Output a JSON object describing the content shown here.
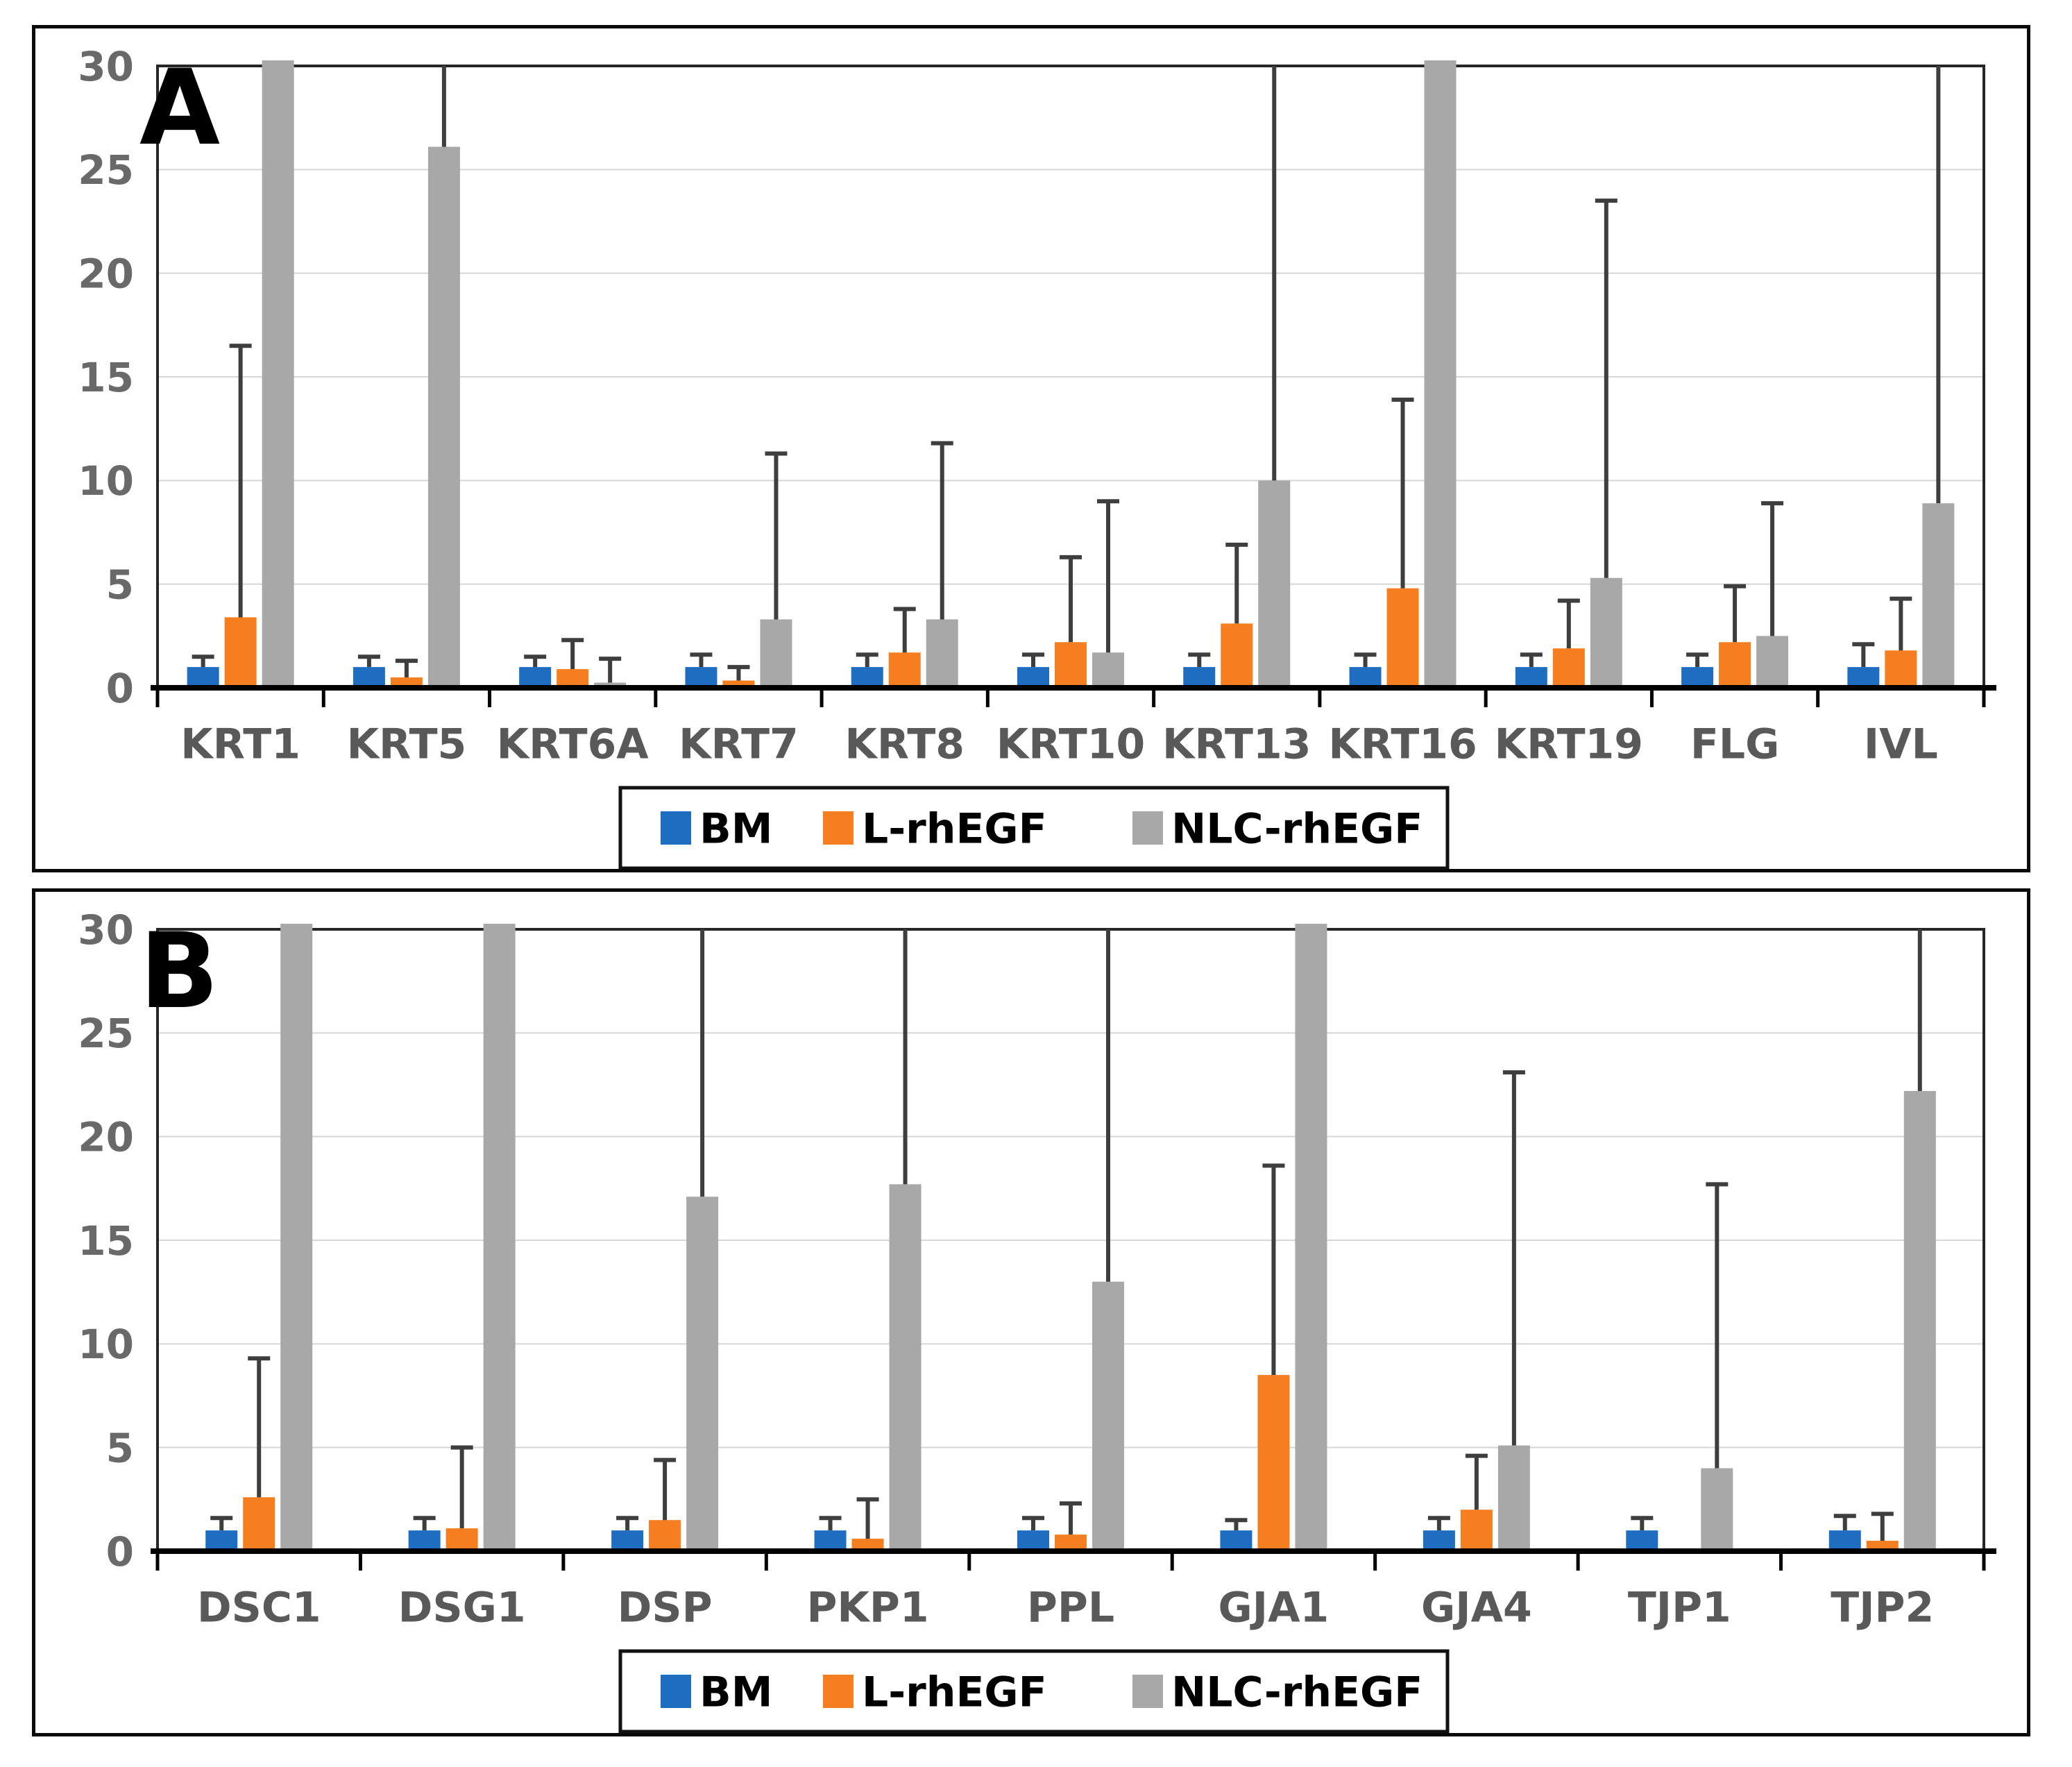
{
  "figure": {
    "background": "#ffffff",
    "panel_count": 2
  },
  "colors": {
    "bm": "#1F6DC1",
    "l_rhegf": "#F57E20",
    "nlc_rhegf": "#A8A8A8",
    "error_bar": "#3E3E3E",
    "grid_line": "#D6D6D6",
    "plot_border": "#262626",
    "axis_line": "#000000",
    "tick_label": "#696969",
    "category_label": "#595959",
    "legend_text": "#000000",
    "legend_border": "#111111",
    "panel_border": "#0a0a0a"
  },
  "legend": {
    "items": [
      {
        "label": "BM",
        "color_key": "bm"
      },
      {
        "label": "L-rhEGF",
        "color_key": "l_rhegf"
      },
      {
        "label": "NLC-rhEGF",
        "color_key": "nlc_rhegf"
      }
    ]
  },
  "chart_data": [
    {
      "type": "bar",
      "panel_label": "A",
      "categories": [
        "KRT1",
        "KRT5",
        "KRT6A",
        "KRT7",
        "KRT8",
        "KRT10",
        "KRT13",
        "KRT16",
        "KRT19",
        "FLG",
        "IVL"
      ],
      "series": [
        {
          "name": "BM",
          "color_key": "bm",
          "values": [
            1.0,
            1.0,
            1.0,
            1.0,
            1.0,
            1.0,
            1.0,
            1.0,
            1.0,
            1.0,
            1.0
          ],
          "errors_upper": [
            1.5,
            1.5,
            1.5,
            1.6,
            1.6,
            1.6,
            1.6,
            1.6,
            1.6,
            1.6,
            2.1
          ]
        },
        {
          "name": "L-rhEGF",
          "color_key": "l_rhegf",
          "values": [
            3.4,
            0.5,
            0.9,
            0.35,
            1.7,
            2.2,
            3.1,
            4.8,
            1.9,
            2.2,
            1.8
          ],
          "errors_upper": [
            16.5,
            1.3,
            2.3,
            1.0,
            3.8,
            6.3,
            6.9,
            13.9,
            4.2,
            4.9,
            4.3
          ]
        },
        {
          "name": "NLC-rhEGF",
          "color_key": "nlc_rhegf",
          "values": [
            30,
            26.1,
            0.25,
            3.3,
            3.3,
            1.7,
            10.0,
            30,
            5.3,
            2.5,
            8.9
          ],
          "errors_upper": [
            null,
            30,
            1.4,
            11.3,
            11.8,
            9.0,
            30,
            null,
            23.5,
            8.9,
            30
          ]
        }
      ],
      "ylim": [
        0,
        30
      ],
      "yticks": [
        0,
        5,
        10,
        15,
        20,
        25,
        30
      ],
      "xlabel": "",
      "ylabel": "",
      "grid": true,
      "legend_position": "bottom"
    },
    {
      "type": "bar",
      "panel_label": "B",
      "categories": [
        "DSC1",
        "DSG1",
        "DSP",
        "PKP1",
        "PPL",
        "GJA1",
        "GJA4",
        "TJP1",
        "TJP2"
      ],
      "series": [
        {
          "name": "BM",
          "color_key": "bm",
          "values": [
            1.0,
            1.0,
            1.0,
            1.0,
            1.0,
            1.0,
            1.0,
            1.0,
            1.0
          ],
          "errors_upper": [
            1.6,
            1.6,
            1.6,
            1.6,
            1.6,
            1.5,
            1.6,
            1.6,
            1.7
          ]
        },
        {
          "name": "L-rhEGF",
          "color_key": "l_rhegf",
          "values": [
            2.6,
            1.1,
            1.5,
            0.6,
            0.8,
            8.5,
            2.0,
            0.05,
            0.5
          ],
          "errors_upper": [
            9.3,
            5.0,
            4.4,
            2.5,
            2.3,
            18.6,
            4.6,
            null,
            1.8
          ]
        },
        {
          "name": "NLC-rhEGF",
          "color_key": "nlc_rhegf",
          "values": [
            30,
            30,
            17.1,
            17.7,
            13.0,
            30,
            5.1,
            4.0,
            22.2
          ],
          "errors_upper": [
            null,
            null,
            30,
            30,
            30,
            null,
            23.1,
            17.7,
            30
          ]
        }
      ],
      "ylim": [
        0,
        30
      ],
      "yticks": [
        0,
        5,
        10,
        15,
        20,
        25,
        30
      ],
      "xlabel": "",
      "ylabel": "",
      "grid": true,
      "legend_position": "bottom"
    }
  ]
}
